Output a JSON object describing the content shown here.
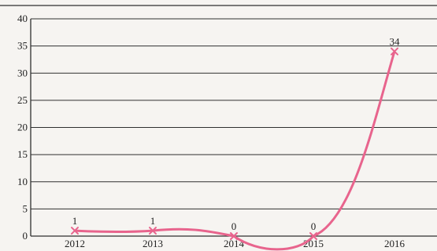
{
  "chart_data": {
    "type": "line",
    "categories": [
      "2012",
      "2013",
      "2014",
      "2015",
      "2016"
    ],
    "values": [
      1,
      1,
      0,
      0,
      34
    ],
    "data_labels": [
      "1",
      "1",
      "0",
      "0",
      "34"
    ],
    "title": "",
    "xlabel": "",
    "ylabel": "",
    "ylim": [
      0,
      40
    ],
    "yticks": [
      "0",
      "5",
      "10",
      "15",
      "20",
      "25",
      "30",
      "35",
      "40"
    ],
    "grid": true,
    "legend": "none",
    "line_style": "smooth",
    "color": "#e8648d"
  }
}
